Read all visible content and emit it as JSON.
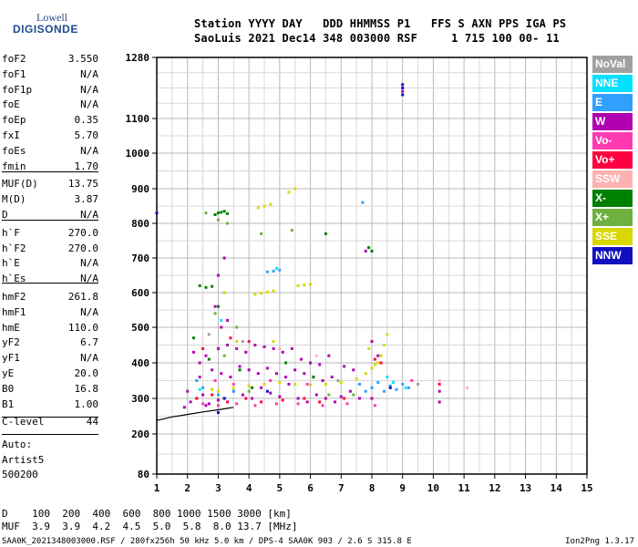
{
  "logo": {
    "line1": "Lowell",
    "line2": "DIGISONDE"
  },
  "header": {
    "labels": "Station YYYY DAY   DDD HHMMSS P1   FFS S AXN PPS IGA PS",
    "values": "SaoLuis 2021 Dec14 348 003000 RSF     1 715 100 00- 11"
  },
  "params": [
    {
      "name": "foF2",
      "value": "3.550"
    },
    {
      "name": "foF1",
      "value": "N/A"
    },
    {
      "name": "foF1p",
      "value": "N/A"
    },
    {
      "name": "foE",
      "value": "N/A"
    },
    {
      "name": "foEp",
      "value": "0.35"
    },
    {
      "name": "fxI",
      "value": "5.70"
    },
    {
      "name": "foEs",
      "value": "N/A"
    },
    {
      "name": "fmin",
      "value": "1.70"
    },
    {
      "name": "MUF(D)",
      "value": "13.75"
    },
    {
      "name": "M(D)",
      "value": "3.87"
    },
    {
      "name": "D",
      "value": "N/A"
    },
    {
      "name": "h`F",
      "value": "270.0"
    },
    {
      "name": "h`F2",
      "value": "270.0"
    },
    {
      "name": "h`E",
      "value": "N/A"
    },
    {
      "name": "h`Es",
      "value": "N/A"
    },
    {
      "name": "hmF2",
      "value": "261.8"
    },
    {
      "name": "hmF1",
      "value": "N/A"
    },
    {
      "name": "hmE",
      "value": "110.0"
    },
    {
      "name": "yF2",
      "value": "6.7"
    },
    {
      "name": "yF1",
      "value": "N/A"
    },
    {
      "name": "yE",
      "value": "20.0"
    },
    {
      "name": "B0",
      "value": "16.8"
    },
    {
      "name": "B1",
      "value": "1.00"
    },
    {
      "name": "C-level",
      "value": "44"
    }
  ],
  "auto": {
    "line1": "Auto:",
    "line2": "Artist5",
    "line3": "500200"
  },
  "legend": [
    {
      "label": "NoVal",
      "color": "#a0a0a0"
    },
    {
      "label": "NNE",
      "color": "#00e0ff"
    },
    {
      "label": "E",
      "color": "#30a0ff"
    },
    {
      "label": "W",
      "color": "#b000b0"
    },
    {
      "label": "Vo-",
      "color": "#ff3ab0"
    },
    {
      "label": "Vo+",
      "color": "#ff0040"
    },
    {
      "label": "SSW",
      "color": "#ffb0b0"
    },
    {
      "label": "X-",
      "color": "#008000"
    },
    {
      "label": "X+",
      "color": "#70b040"
    },
    {
      "label": "SSE",
      "color": "#d8d800"
    },
    {
      "label": "NNW",
      "color": "#1010c0"
    }
  ],
  "bottom": {
    "d_row": "D    100  200  400  600  800 1000 1500 3000 [km]",
    "muf_row": "MUF  3.9  3.9  4.2  4.5  5.0  5.8  8.0 13.7 [MHz]"
  },
  "footer": {
    "left": "SAA0K_2021348003000.RSF / 280fx256h 50 kHz 5.0 km / DPS-4 SAA0K 903 / 2.6 S 315.8 E",
    "right": "Ion2Png 1.3.17"
  },
  "chart_data": {
    "type": "scatter",
    "x_ticks": [
      "1",
      "2",
      "3",
      "4",
      "5",
      "6",
      "7",
      "8",
      "9",
      "10",
      "11",
      "12",
      "13",
      "14",
      "15"
    ],
    "y_ticks": [
      "80",
      "200",
      "300",
      "400",
      "500",
      "600",
      "700",
      "800",
      "900",
      "1000",
      "1100",
      "1280"
    ],
    "xlim": [
      1,
      15
    ],
    "ylim": [
      80,
      1280
    ],
    "grid": true,
    "y_scale": "nonlinear",
    "trace_curve": {
      "x": [
        1.0,
        1.5,
        2.0,
        2.5,
        3.0,
        3.3,
        3.5
      ],
      "y": [
        238,
        248,
        255,
        262,
        268,
        272,
        275
      ],
      "color": "#000000"
    },
    "series": [
      {
        "color": "#b000b0",
        "points": [
          [
            2.1,
            290
          ],
          [
            2.3,
            300
          ],
          [
            2.5,
            310
          ],
          [
            2.7,
            285
          ],
          [
            3.0,
            295
          ],
          [
            3.2,
            300
          ],
          [
            3.5,
            320
          ],
          [
            3.8,
            310
          ],
          [
            4.1,
            300
          ],
          [
            4.4,
            330
          ],
          [
            4.7,
            315
          ],
          [
            5.0,
            305
          ],
          [
            5.3,
            340
          ],
          [
            5.6,
            300
          ],
          [
            5.9,
            290
          ],
          [
            6.2,
            310
          ],
          [
            6.5,
            300
          ],
          [
            6.8,
            290
          ],
          [
            7.0,
            305
          ],
          [
            7.3,
            320
          ],
          [
            7.6,
            300
          ],
          [
            8.0,
            300
          ],
          [
            2.4,
            360
          ],
          [
            2.8,
            380
          ],
          [
            3.1,
            370
          ],
          [
            3.4,
            360
          ],
          [
            3.7,
            390
          ],
          [
            4.0,
            380
          ],
          [
            4.3,
            370
          ],
          [
            4.6,
            385
          ],
          [
            4.9,
            370
          ],
          [
            5.2,
            360
          ],
          [
            5.5,
            380
          ],
          [
            5.8,
            370
          ],
          [
            6.1,
            360
          ],
          [
            6.4,
            350
          ],
          [
            6.7,
            360
          ],
          [
            2.2,
            430
          ],
          [
            2.6,
            420
          ],
          [
            3.0,
            440
          ],
          [
            3.3,
            450
          ],
          [
            3.6,
            440
          ],
          [
            3.9,
            430
          ],
          [
            4.2,
            450
          ],
          [
            4.5,
            445
          ],
          [
            4.8,
            440
          ],
          [
            5.1,
            430
          ],
          [
            5.4,
            440
          ],
          [
            3.1,
            500
          ],
          [
            3.3,
            520
          ],
          [
            2.9,
            560
          ],
          [
            3.2,
            600
          ],
          [
            3.0,
            650
          ],
          [
            3.2,
            700
          ],
          [
            9.0,
            1180
          ],
          [
            7.8,
            720
          ],
          [
            8.0,
            460
          ],
          [
            8.2,
            420
          ],
          [
            10.2,
            320
          ],
          [
            10.2,
            290
          ],
          [
            2.0,
            320
          ],
          [
            2.4,
            400
          ],
          [
            5.7,
            410
          ],
          [
            6.0,
            400
          ],
          [
            6.3,
            395
          ],
          [
            6.6,
            420
          ],
          [
            7.1,
            390
          ],
          [
            7.4,
            380
          ],
          [
            1.9,
            275
          ],
          [
            2.6,
            280
          ]
        ]
      },
      {
        "color": "#d8d800",
        "points": [
          [
            4.3,
            845
          ],
          [
            4.5,
            850
          ],
          [
            4.7,
            855
          ],
          [
            4.2,
            595
          ],
          [
            4.4,
            598
          ],
          [
            4.6,
            602
          ],
          [
            4.8,
            605
          ],
          [
            5.6,
            620
          ],
          [
            5.8,
            622
          ],
          [
            6.0,
            624
          ],
          [
            5.0,
            345
          ],
          [
            5.5,
            340
          ],
          [
            6.0,
            338
          ],
          [
            6.5,
            340
          ],
          [
            7.0,
            345
          ],
          [
            7.5,
            355
          ],
          [
            7.8,
            370
          ],
          [
            8.0,
            385
          ],
          [
            8.2,
            400
          ],
          [
            8.3,
            420
          ],
          [
            8.4,
            450
          ],
          [
            8.5,
            480
          ],
          [
            4.5,
            340
          ],
          [
            4.0,
            335
          ],
          [
            3.5,
            330
          ],
          [
            3.0,
            320
          ],
          [
            5.3,
            890
          ],
          [
            5.5,
            900
          ],
          [
            3.2,
            600
          ],
          [
            3.6,
            460
          ],
          [
            4.8,
            460
          ],
          [
            7.9,
            440
          ],
          [
            8.1,
            395
          ],
          [
            2.8,
            325
          ]
        ]
      },
      {
        "color": "#30a0ff",
        "points": [
          [
            8.0,
            330
          ],
          [
            8.2,
            345
          ],
          [
            8.4,
            320
          ],
          [
            8.6,
            335
          ],
          [
            8.8,
            325
          ],
          [
            9.0,
            340
          ],
          [
            9.2,
            330
          ],
          [
            7.8,
            320
          ],
          [
            7.6,
            340
          ],
          [
            3.5,
            320
          ],
          [
            3.0,
            310
          ],
          [
            2.5,
            330
          ],
          [
            4.6,
            660
          ],
          [
            4.8,
            662
          ],
          [
            5.0,
            665
          ],
          [
            7.7,
            860
          ],
          [
            2.3,
            350
          ]
        ]
      },
      {
        "color": "#008000",
        "points": [
          [
            3.0,
            830
          ],
          [
            3.1,
            832
          ],
          [
            3.2,
            835
          ],
          [
            3.3,
            828
          ],
          [
            2.9,
            825
          ],
          [
            2.4,
            620
          ],
          [
            2.6,
            615
          ],
          [
            2.8,
            618
          ],
          [
            6.5,
            770
          ],
          [
            7.9,
            730
          ],
          [
            8.0,
            720
          ],
          [
            2.2,
            470
          ],
          [
            2.7,
            410
          ],
          [
            3.7,
            380
          ],
          [
            4.1,
            330
          ],
          [
            6.1,
            360
          ],
          [
            5.2,
            400
          ],
          [
            3.0,
            560
          ]
        ]
      },
      {
        "color": "#ff0040",
        "points": [
          [
            2.3,
            300
          ],
          [
            2.8,
            310
          ],
          [
            3.3,
            290
          ],
          [
            3.9,
            300
          ],
          [
            4.4,
            290
          ],
          [
            5.1,
            295
          ],
          [
            5.8,
            300
          ],
          [
            6.3,
            290
          ],
          [
            7.1,
            300
          ],
          [
            8.1,
            410
          ],
          [
            8.3,
            400
          ],
          [
            10.2,
            340
          ],
          [
            2.5,
            440
          ],
          [
            3.4,
            470
          ],
          [
            4.0,
            460
          ]
        ]
      },
      {
        "color": "#ff3ab0",
        "points": [
          [
            2.5,
            285
          ],
          [
            3.0,
            280
          ],
          [
            3.6,
            285
          ],
          [
            4.2,
            280
          ],
          [
            4.9,
            285
          ],
          [
            5.6,
            285
          ],
          [
            6.4,
            280
          ],
          [
            7.2,
            285
          ],
          [
            2.9,
            350
          ],
          [
            3.5,
            340
          ],
          [
            4.7,
            350
          ],
          [
            5.9,
            340
          ],
          [
            8.1,
            280
          ],
          [
            9.3,
            350
          ]
        ]
      },
      {
        "color": "#70b040",
        "points": [
          [
            2.6,
            830
          ],
          [
            3.0,
            810
          ],
          [
            3.3,
            800
          ],
          [
            4.4,
            770
          ],
          [
            5.4,
            780
          ],
          [
            2.9,
            540
          ],
          [
            3.6,
            500
          ],
          [
            4.0,
            320
          ],
          [
            6.6,
            310
          ],
          [
            7.4,
            310
          ],
          [
            3.2,
            420
          ]
        ]
      },
      {
        "color": "#00e0ff",
        "points": [
          [
            8.5,
            360
          ],
          [
            8.7,
            345
          ],
          [
            9.1,
            330
          ],
          [
            4.9,
            670
          ],
          [
            3.1,
            520
          ],
          [
            2.4,
            325
          ]
        ]
      },
      {
        "color": "#1010c0",
        "points": [
          [
            9.0,
            1200
          ],
          [
            9.0,
            1190
          ],
          [
            9.0,
            1170
          ],
          [
            3.2,
            300
          ],
          [
            4.6,
            320
          ],
          [
            1.0,
            830
          ],
          [
            8.6,
            330
          ],
          [
            3.0,
            260
          ]
        ]
      },
      {
        "color": "#ffb0b0",
        "points": [
          [
            10.2,
            350
          ],
          [
            11.1,
            330
          ],
          [
            5.0,
            440
          ],
          [
            6.2,
            420
          ]
        ]
      },
      {
        "color": "#a0a0a0",
        "points": [
          [
            2.7,
            480
          ],
          [
            3.8,
            460
          ],
          [
            6.9,
            350
          ],
          [
            9.5,
            340
          ]
        ]
      }
    ]
  }
}
